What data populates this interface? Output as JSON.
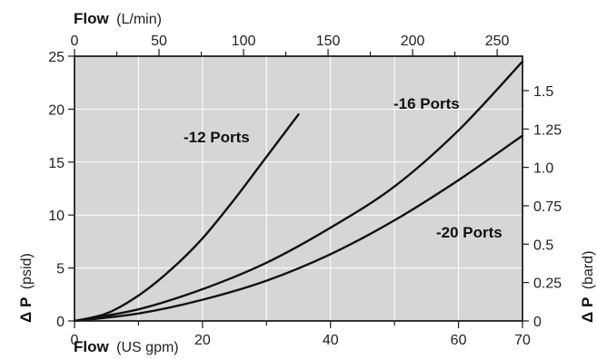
{
  "chart_data": {
    "type": "line",
    "x_bottom": {
      "label_bold": "Flow",
      "label_unit": "(US gpm)",
      "range": [
        0,
        70
      ],
      "ticks": [
        "0",
        "20",
        "40",
        "60",
        "70"
      ]
    },
    "x_top": {
      "label_bold": "Flow",
      "label_unit": "(L/min)",
      "range": [
        0,
        265
      ],
      "ticks": [
        "0",
        "50",
        "100",
        "150",
        "200",
        "250"
      ]
    },
    "y_left": {
      "label_bold": "Δ P",
      "label_unit": "(psid)",
      "range": [
        0,
        25
      ],
      "ticks": [
        "0",
        "5",
        "10",
        "15",
        "20",
        "25"
      ]
    },
    "y_right": {
      "label_bold": "Δ P",
      "label_unit": "(bard)",
      "range": [
        0,
        1.724
      ],
      "ticks": [
        "0",
        "0.25",
        "0.5",
        "0.75",
        "1.0",
        "1.25",
        "1.5"
      ]
    },
    "grid": true,
    "series": [
      {
        "name": "-12 Ports",
        "x": [
          0,
          5,
          10,
          15,
          20,
          25,
          30,
          35
        ],
        "y": [
          0,
          0.7,
          2.4,
          4.8,
          7.8,
          11.5,
          15.5,
          19.5
        ]
      },
      {
        "name": "-16 Ports",
        "x": [
          0,
          10,
          20,
          30,
          40,
          50,
          60,
          70
        ],
        "y": [
          0,
          1.1,
          3.0,
          5.5,
          8.8,
          12.7,
          18.0,
          24.5
        ]
      },
      {
        "name": "-20 Ports",
        "x": [
          0,
          10,
          20,
          30,
          40,
          50,
          60,
          70
        ],
        "y": [
          0,
          0.7,
          2.0,
          3.8,
          6.3,
          9.5,
          13.3,
          17.5
        ]
      }
    ]
  }
}
